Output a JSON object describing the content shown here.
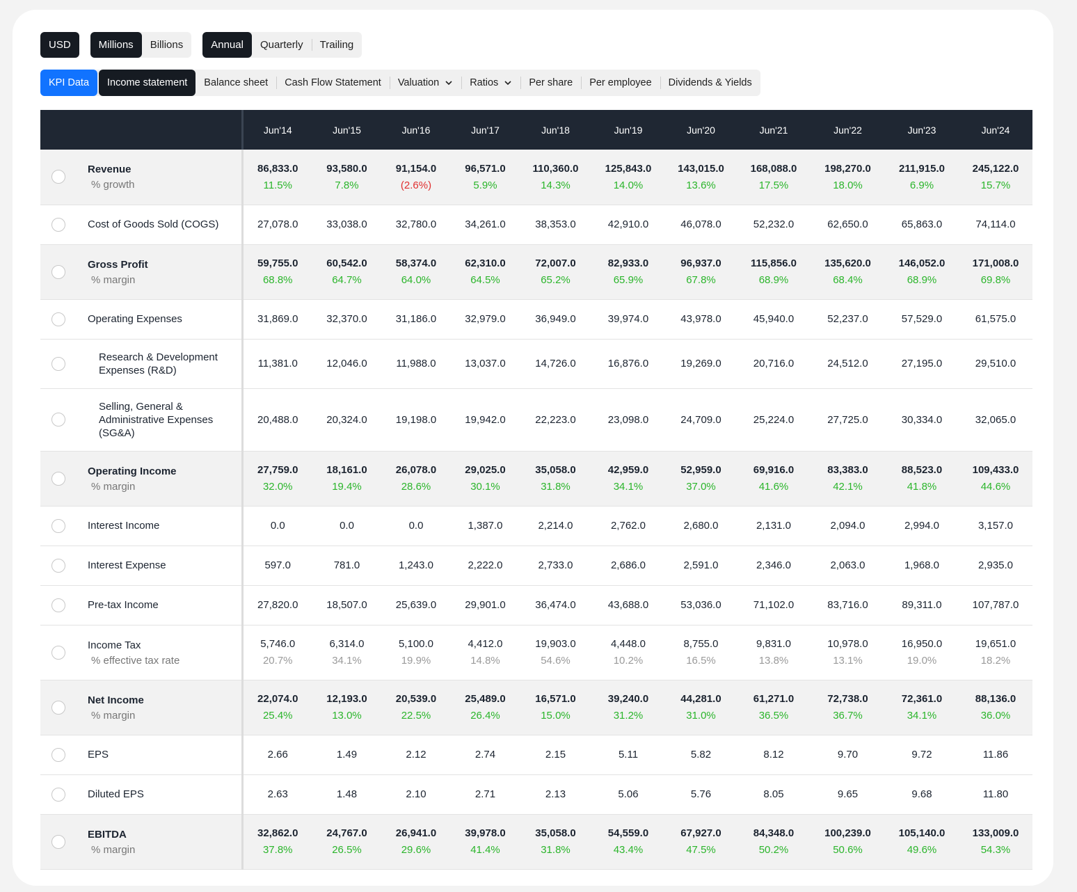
{
  "toolbar": {
    "currency": "USD",
    "units": [
      "Millions",
      "Billions"
    ],
    "periods": [
      "Annual",
      "Quarterly",
      "Trailing"
    ]
  },
  "tabs": [
    "KPI Data",
    "Income statement",
    "Balance sheet",
    "Cash Flow Statement",
    "Valuation",
    "Ratios",
    "Per share",
    "Per employee",
    "Dividends & Yields"
  ],
  "table": {
    "columns": [
      "Jun'14",
      "Jun'15",
      "Jun'16",
      "Jun'17",
      "Jun'18",
      "Jun'19",
      "Jun'20",
      "Jun'21",
      "Jun'22",
      "Jun'23",
      "Jun'24"
    ],
    "rows": [
      {
        "label": "Revenue",
        "highlight": true,
        "sub_label": "% growth",
        "sub_style": "growth",
        "values": [
          "86,833.0",
          "93,580.0",
          "91,154.0",
          "96,571.0",
          "110,360.0",
          "125,843.0",
          "143,015.0",
          "168,088.0",
          "198,270.0",
          "211,915.0",
          "245,122.0"
        ],
        "sub_values": [
          "11.5%",
          "7.8%",
          "(2.6%)",
          "5.9%",
          "14.3%",
          "14.0%",
          "13.6%",
          "17.5%",
          "18.0%",
          "6.9%",
          "15.7%"
        ]
      },
      {
        "label": "Cost of Goods Sold (COGS)",
        "values": [
          "27,078.0",
          "33,038.0",
          "32,780.0",
          "34,261.0",
          "38,353.0",
          "42,910.0",
          "46,078.0",
          "52,232.0",
          "62,650.0",
          "65,863.0",
          "74,114.0"
        ]
      },
      {
        "label": "Gross Profit",
        "highlight": true,
        "sub_label": "% margin",
        "sub_style": "growth",
        "values": [
          "59,755.0",
          "60,542.0",
          "58,374.0",
          "62,310.0",
          "72,007.0",
          "82,933.0",
          "96,937.0",
          "115,856.0",
          "135,620.0",
          "146,052.0",
          "171,008.0"
        ],
        "sub_values": [
          "68.8%",
          "64.7%",
          "64.0%",
          "64.5%",
          "65.2%",
          "65.9%",
          "67.8%",
          "68.9%",
          "68.4%",
          "68.9%",
          "69.8%"
        ]
      },
      {
        "label": "Operating Expenses",
        "values": [
          "31,869.0",
          "32,370.0",
          "31,186.0",
          "32,979.0",
          "36,949.0",
          "39,974.0",
          "43,978.0",
          "45,940.0",
          "52,237.0",
          "57,529.0",
          "61,575.0"
        ]
      },
      {
        "label": "Research & Development Expenses (R&D)",
        "indent": true,
        "height": 71,
        "values": [
          "11,381.0",
          "12,046.0",
          "11,988.0",
          "13,037.0",
          "14,726.0",
          "16,876.0",
          "19,269.0",
          "20,716.0",
          "24,512.0",
          "27,195.0",
          "29,510.0"
        ]
      },
      {
        "label": "Selling, General & Administrative Expenses (SG&A)",
        "indent": true,
        "height": 90,
        "values": [
          "20,488.0",
          "20,324.0",
          "19,198.0",
          "19,942.0",
          "22,223.0",
          "23,098.0",
          "24,709.0",
          "25,224.0",
          "27,725.0",
          "30,334.0",
          "32,065.0"
        ]
      },
      {
        "label": "Operating Income",
        "highlight": true,
        "sub_label": "% margin",
        "sub_style": "growth",
        "values": [
          "27,759.0",
          "18,161.0",
          "26,078.0",
          "29,025.0",
          "35,058.0",
          "42,959.0",
          "52,959.0",
          "69,916.0",
          "83,383.0",
          "88,523.0",
          "109,433.0"
        ],
        "sub_values": [
          "32.0%",
          "19.4%",
          "28.6%",
          "30.1%",
          "31.8%",
          "34.1%",
          "37.0%",
          "41.6%",
          "42.1%",
          "41.8%",
          "44.6%"
        ]
      },
      {
        "label": "Interest Income",
        "values": [
          "0.0",
          "0.0",
          "0.0",
          "1,387.0",
          "2,214.0",
          "2,762.0",
          "2,680.0",
          "2,131.0",
          "2,094.0",
          "2,994.0",
          "3,157.0"
        ]
      },
      {
        "label": "Interest Expense",
        "values": [
          "597.0",
          "781.0",
          "1,243.0",
          "2,222.0",
          "2,733.0",
          "2,686.0",
          "2,591.0",
          "2,346.0",
          "2,063.0",
          "1,968.0",
          "2,935.0"
        ]
      },
      {
        "label": "Pre-tax Income",
        "values": [
          "27,820.0",
          "18,507.0",
          "25,639.0",
          "29,901.0",
          "36,474.0",
          "43,688.0",
          "53,036.0",
          "71,102.0",
          "83,716.0",
          "89,311.0",
          "107,787.0"
        ]
      },
      {
        "label": "Income Tax",
        "sub_label": "% effective tax rate",
        "sub_style": "grey",
        "values": [
          "5,746.0",
          "6,314.0",
          "5,100.0",
          "4,412.0",
          "19,903.0",
          "4,448.0",
          "8,755.0",
          "9,831.0",
          "10,978.0",
          "16,950.0",
          "19,651.0"
        ],
        "sub_values": [
          "20.7%",
          "34.1%",
          "19.9%",
          "14.8%",
          "54.6%",
          "10.2%",
          "16.5%",
          "13.8%",
          "13.1%",
          "19.0%",
          "18.2%"
        ]
      },
      {
        "label": "Net Income",
        "highlight": true,
        "sub_label": "% margin",
        "sub_style": "growth",
        "values": [
          "22,074.0",
          "12,193.0",
          "20,539.0",
          "25,489.0",
          "16,571.0",
          "39,240.0",
          "44,281.0",
          "61,271.0",
          "72,738.0",
          "72,361.0",
          "88,136.0"
        ],
        "sub_values": [
          "25.4%",
          "13.0%",
          "22.5%",
          "26.4%",
          "15.0%",
          "31.2%",
          "31.0%",
          "36.5%",
          "36.7%",
          "34.1%",
          "36.0%"
        ]
      },
      {
        "label": "EPS",
        "values": [
          "2.66",
          "1.49",
          "2.12",
          "2.74",
          "2.15",
          "5.11",
          "5.82",
          "8.12",
          "9.70",
          "9.72",
          "11.86"
        ]
      },
      {
        "label": "Diluted EPS",
        "values": [
          "2.63",
          "1.48",
          "2.10",
          "2.71",
          "2.13",
          "5.06",
          "5.76",
          "8.05",
          "9.65",
          "9.68",
          "11.80"
        ]
      },
      {
        "label": "EBITDA",
        "highlight": true,
        "sub_label": "% margin",
        "sub_style": "growth",
        "values": [
          "32,862.0",
          "24,767.0",
          "26,941.0",
          "39,978.0",
          "35,058.0",
          "54,559.0",
          "67,927.0",
          "84,348.0",
          "100,239.0",
          "105,140.0",
          "133,009.0"
        ],
        "sub_values": [
          "37.8%",
          "26.5%",
          "29.6%",
          "41.4%",
          "31.8%",
          "43.4%",
          "47.5%",
          "50.2%",
          "50.6%",
          "49.6%",
          "54.3%"
        ]
      }
    ]
  }
}
